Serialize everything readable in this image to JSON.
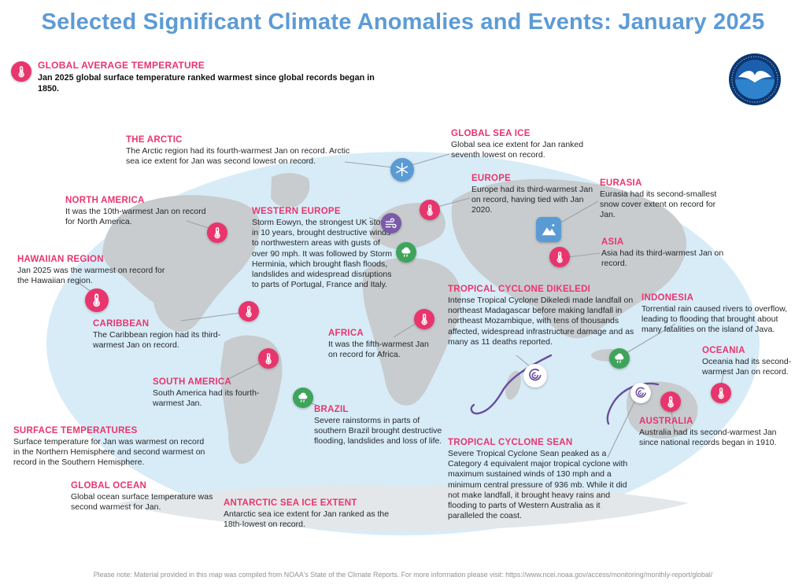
{
  "page": {
    "title": "Selected Significant Climate Anomalies and Events: January 2025",
    "footer": "Please note: Material provided in this map was compiled from NOAA's State of the Climate Reports. For more information please visit: https://www.ncei.noaa.gov/access/monitoring/monthly-report/global/"
  },
  "header": {
    "title": "GLOBAL AVERAGE TEMPERATURE",
    "body": "Jan 2025 global surface temperature ranked warmest since global records began in 1850."
  },
  "colors": {
    "title_blue": "#5c9bd6",
    "accent_pink": "#e8356d",
    "ocean_blue": "#d8ecf7",
    "land_gray": "#c8cccf",
    "antarctica_gray": "#e4e7e9",
    "cyclone_purple": "#6a4e9e",
    "rain_green": "#3fa45b",
    "ice_blue": "#5b9bd5"
  },
  "icons": {
    "thermometer-icon": "white thermometer on pink circle",
    "snowflake-icon": "white snowflake on blue circle",
    "snow-cover-icon": "white snowy mountains on blue rounded square",
    "wind-icon": "white wind gust lines on purple circle",
    "rain-icon": "white rain cloud with drops on green circle",
    "cyclone-icon": "purple spiral on white circle",
    "noaa-logo": "NOAA emblem (blue circle with white seabird)"
  },
  "callouts": [
    {
      "title": "THE ARCTIC",
      "body": "The Arctic region had its fourth-warmest Jan on record. Arctic sea ice extent for Jan was second lowest on record."
    },
    {
      "title": "GLOBAL SEA ICE",
      "body": "Global sea ice extent for Jan ranked seventh lowest on record."
    },
    {
      "title": "EUROPE",
      "body": "Europe had its third-warmest Jan on record, having tied with Jan 2020."
    },
    {
      "title": "EURASIA",
      "body": "Eurasia had its second-smallest snow cover extent on record for Jan."
    },
    {
      "title": "NORTH AMERICA",
      "body": "It was the 10th-warmest Jan on record for North America."
    },
    {
      "title": "WESTERN EUROPE",
      "body": "Storm Eowyn, the strongest UK storm in 10 years, brought destructive winds to northwestern areas with gusts of over 90 mph. It was followed by Storm Herminia, which brought flash floods, landslides and widespread disruptions to parts of Portugal, France and Italy."
    },
    {
      "title": "ASIA",
      "body": "Asia had its third-warmest Jan on record."
    },
    {
      "title": "HAWAIIAN REGION",
      "body": "Jan 2025 was the warmest on record for the Hawaiian region."
    },
    {
      "title": "CARIBBEAN",
      "body": "The Caribbean region had its third-warmest Jan on record."
    },
    {
      "title": "AFRICA",
      "body": "It was the fifth-warmest Jan on record for Africa."
    },
    {
      "title": "TROPICAL CYCLONE DIKELEDI",
      "body": "Intense Tropical Cyclone Dikeledi made landfall on northeast Madagascar before making landfall in northeast Mozambique, with tens of thousands affected, widespread infrastructure damage and as many as 11 deaths reported."
    },
    {
      "title": "INDONESIA",
      "body": "Torrential rain caused rivers to overflow, leading to flooding that brought about many fatalities on the island of Java."
    },
    {
      "title": "OCEANIA",
      "body": "Oceania had its second-warmest Jan on record."
    },
    {
      "title": "SOUTH AMERICA",
      "body": "South America had its fourth-warmest Jan."
    },
    {
      "title": "BRAZIL",
      "body": "Severe rainstorms in parts of southern Brazil brought destructive flooding, landslides and loss of life."
    },
    {
      "title": "SURFACE TEMPERATURES",
      "body": "Surface temperature for Jan was warmest on record in the Northern Hemisphere and second warmest on record in the Southern Hemisphere."
    },
    {
      "title": "AUSTRALIA",
      "body": "Australia had its second-warmest Jan since national records began in 1910."
    },
    {
      "title": "TROPICAL CYCLONE SEAN",
      "body": "Severe Tropical Cyclone Sean peaked as a Category 4 equivalent major tropical cyclone with maximum sustained winds of 130 mph and a minimum central pressure of 936 mb. While it did not make landfall, it brought heavy rains and flooding to parts of Western Australia as it paralleled the coast."
    },
    {
      "title": "GLOBAL OCEAN",
      "body": "Global ocean surface temperature was second warmest for Jan."
    },
    {
      "title": "ANTARCTIC SEA ICE EXTENT",
      "body": "Antarctic sea ice extent for Jan ranked as the 18th-lowest on record."
    }
  ]
}
